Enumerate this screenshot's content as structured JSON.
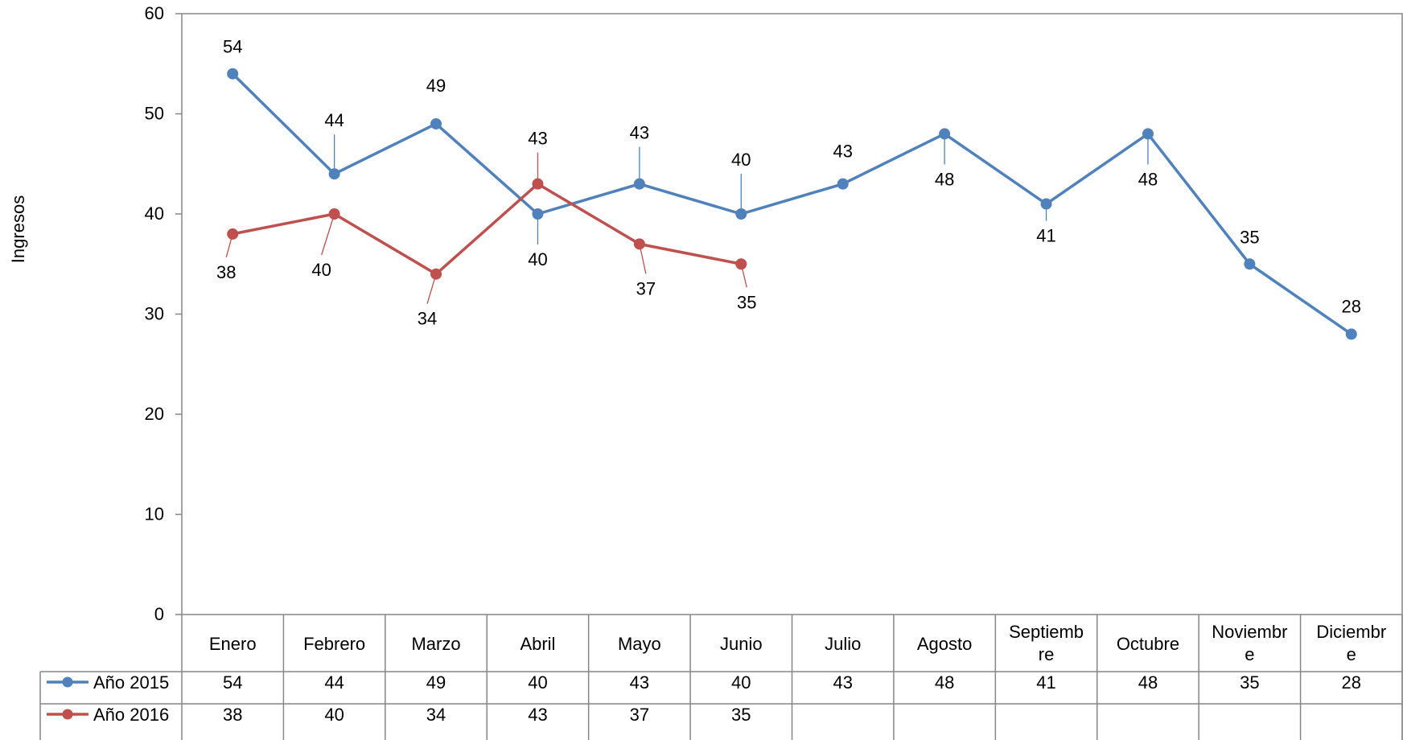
{
  "chart_data": {
    "type": "line",
    "title": "",
    "ylabel": "Ingresos",
    "xlabel": "",
    "ylim": [
      0,
      60
    ],
    "yticks": [
      0,
      10,
      20,
      30,
      40,
      50,
      60
    ],
    "categories": [
      "Enero",
      "Febrero",
      "Marzo",
      "Abril",
      "Mayo",
      "Junio",
      "Julio",
      "Agosto",
      "Septiembre",
      "Octubre",
      "Noviembre",
      "Diciembre"
    ],
    "category_display": [
      [
        "Enero"
      ],
      [
        "Febrero"
      ],
      [
        "Marzo"
      ],
      [
        "Abril"
      ],
      [
        "Mayo"
      ],
      [
        "Junio"
      ],
      [
        "Julio"
      ],
      [
        "Agosto"
      ],
      [
        "Septiemb",
        "re"
      ],
      [
        "Octubre"
      ],
      [
        "Noviembr",
        "e"
      ],
      [
        "Diciembr",
        "e"
      ]
    ],
    "grid": false,
    "legend": "data-table",
    "series": [
      {
        "name": "Año 2015",
        "color": "#4f81bd",
        "values": [
          54,
          44,
          49,
          40,
          43,
          40,
          43,
          48,
          41,
          48,
          35,
          28
        ]
      },
      {
        "name": "Año 2016",
        "color": "#c0504d",
        "values": [
          38,
          40,
          34,
          43,
          37,
          35,
          null,
          null,
          null,
          null,
          null,
          null
        ]
      }
    ]
  }
}
